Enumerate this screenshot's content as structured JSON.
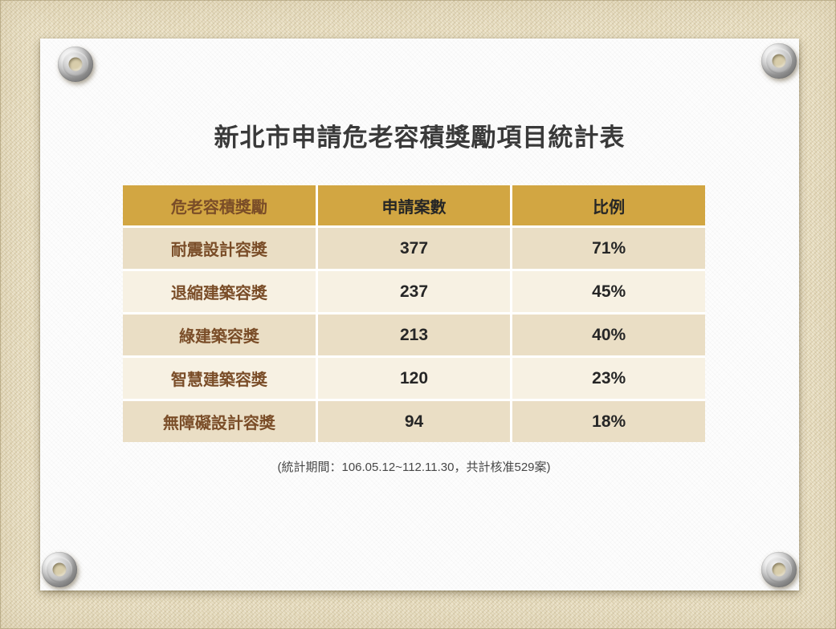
{
  "slide": {
    "title": "新北市申請危老容積獎勵項目統計表",
    "footnote": "(統計期間：106.05.12~112.11.30，共計核准529案)"
  },
  "table": {
    "columns": [
      "危老容積獎勵",
      "申請案數",
      "比例"
    ],
    "rows": [
      {
        "label": "耐震設計容獎",
        "count": "377",
        "ratio": "71%"
      },
      {
        "label": "退縮建築容獎",
        "count": "237",
        "ratio": "45%"
      },
      {
        "label": "綠建築容獎",
        "count": "213",
        "ratio": "40%"
      },
      {
        "label": "智慧建築容獎",
        "count": "120",
        "ratio": "23%"
      },
      {
        "label": "無障礙設計容獎",
        "count": "94",
        "ratio": "18%"
      }
    ]
  },
  "colors": {
    "header_bg": "#d2a642",
    "row_dark_bg": "#eadec5",
    "row_light_bg": "#f7f1e3",
    "label_brown": "#7a4d28",
    "value_dark": "#262626",
    "fabric_bg": "#e9dfc2",
    "paper_bg": "#fdfdfd"
  }
}
